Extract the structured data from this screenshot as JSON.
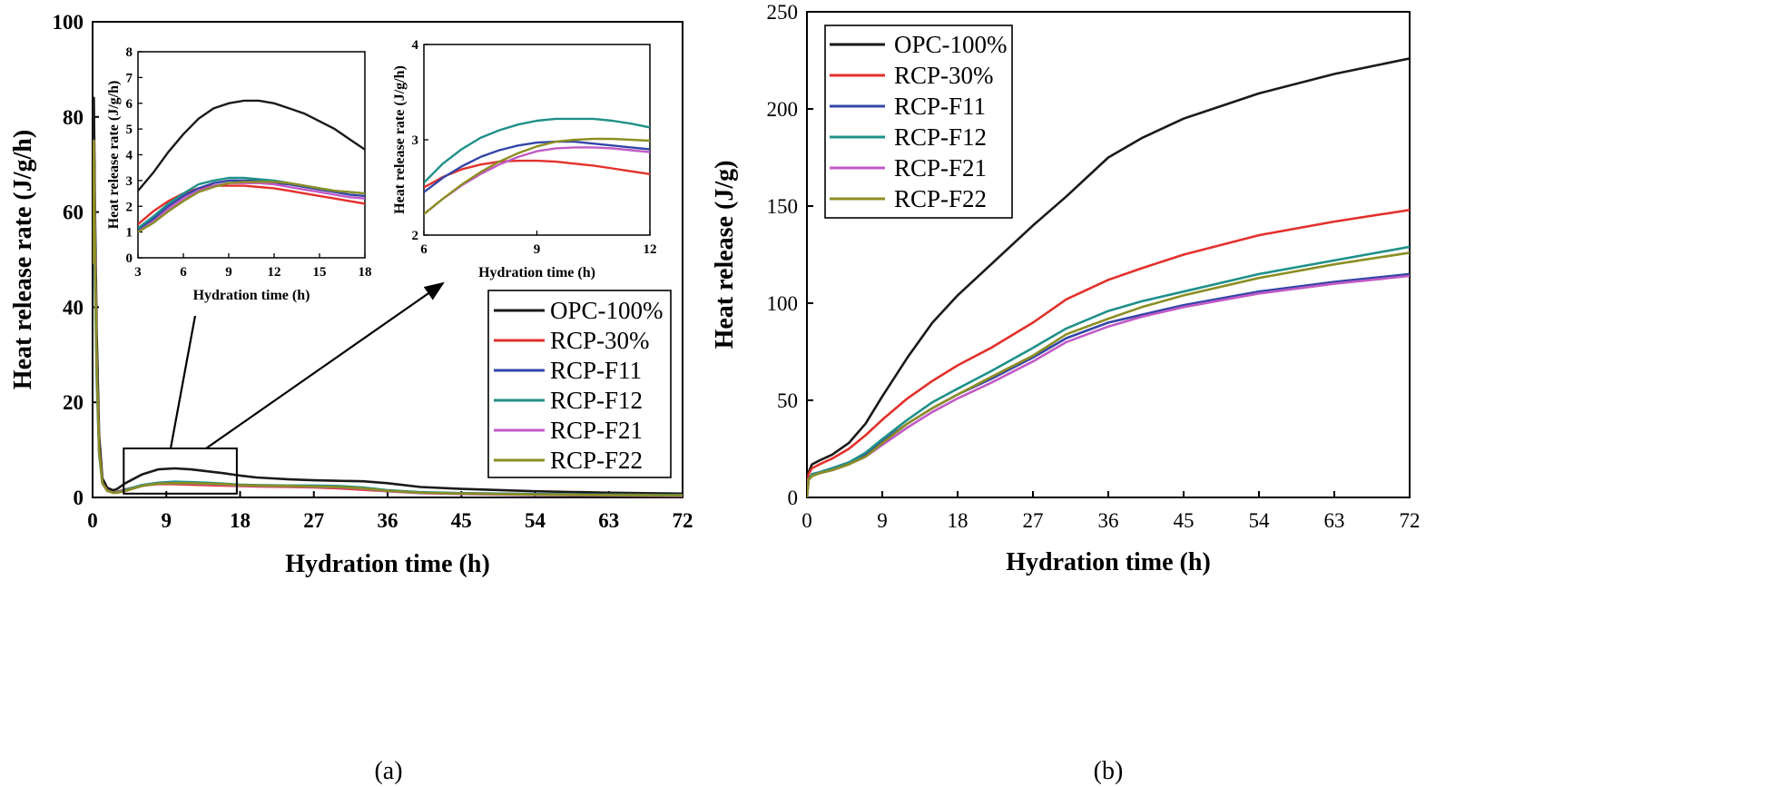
{
  "colors": {
    "OPC-100%": "#1a1a1a",
    "RCP-30%": "#e3302b",
    "RCP-F11": "#3346a8",
    "RCP-F12": "#1f9089",
    "RCP-F21": "#c25ac6",
    "RCP-F22": "#8c8e23"
  },
  "chart_data": [
    {
      "id": "a",
      "type": "line",
      "panel_label": "(a)",
      "xlabel": "Hydration time (h)",
      "ylabel": "Heat release rate (J/g/h)",
      "xlim": [
        0,
        72
      ],
      "ylim": [
        0,
        100
      ],
      "xticks": [
        0,
        9,
        18,
        27,
        36,
        45,
        54,
        63,
        72
      ],
      "yticks": [
        0,
        20,
        40,
        60,
        80,
        100
      ],
      "zoom_box": {
        "x": [
          3.8,
          17.6
        ],
        "y": [
          0.8,
          10.3
        ]
      },
      "legend": [
        "OPC-100%",
        "RCP-30%",
        "RCP-F11",
        "RCP-F12",
        "RCP-F21",
        "RCP-F22"
      ],
      "series": [
        {
          "name": "OPC-100%",
          "x": [
            0,
            0.15,
            0.3,
            0.5,
            0.8,
            1.2,
            1.8,
            2.5,
            3,
            4,
            6,
            8,
            10,
            12,
            14,
            16,
            18,
            20,
            24,
            27,
            30,
            33,
            36,
            40,
            45,
            54,
            63,
            72
          ],
          "y": [
            50,
            84,
            60,
            35,
            13,
            4,
            2,
            1.5,
            1.8,
            3,
            4.8,
            5.9,
            6.1,
            5.9,
            5.5,
            5.1,
            4.6,
            4.2,
            3.8,
            3.6,
            3.5,
            3.4,
            3,
            2.2,
            1.8,
            1.3,
            1.0,
            0.8
          ]
        },
        {
          "name": "RCP-30%",
          "x": [
            0,
            0.15,
            0.3,
            0.5,
            0.8,
            1.2,
            1.8,
            2.5,
            3,
            4,
            6,
            8,
            10,
            12,
            14,
            16,
            18,
            20,
            24,
            27,
            30,
            33,
            36,
            40,
            45,
            54,
            63,
            72
          ],
          "y": [
            49,
            75,
            52,
            28,
            10,
            3,
            1.4,
            1,
            1.2,
            1.7,
            2.5,
            2.8,
            2.8,
            2.7,
            2.6,
            2.5,
            2.4,
            2.3,
            2.2,
            2.1,
            1.9,
            1.6,
            1.3,
            1.0,
            0.9,
            0.7,
            0.6,
            0.5
          ]
        },
        {
          "name": "RCP-F11",
          "x": [
            0,
            0.15,
            0.3,
            0.5,
            0.8,
            1.2,
            1.8,
            2.5,
            3,
            4,
            6,
            8,
            10,
            12,
            14,
            16,
            18,
            20,
            24,
            27,
            30,
            33,
            36,
            40,
            45,
            54,
            63,
            72
          ],
          "y": [
            49,
            75,
            52,
            28,
            10,
            3,
            1.4,
            1,
            1.1,
            1.5,
            2.5,
            3,
            3.1,
            3,
            2.9,
            2.8,
            2.6,
            2.5,
            2.4,
            2.3,
            2.2,
            1.9,
            1.4,
            1.0,
            0.8,
            0.6,
            0.5,
            0.4
          ]
        },
        {
          "name": "RCP-F12",
          "x": [
            0,
            0.15,
            0.3,
            0.5,
            0.8,
            1.2,
            1.8,
            2.5,
            3,
            4,
            6,
            8,
            10,
            12,
            14,
            16,
            18,
            20,
            24,
            27,
            30,
            33,
            36,
            40,
            45,
            54,
            63,
            72
          ],
          "y": [
            49,
            62,
            45,
            25,
            9,
            3,
            1.4,
            1,
            1.1,
            1.6,
            2.6,
            3.1,
            3.3,
            3.2,
            3.1,
            2.9,
            2.7,
            2.6,
            2.5,
            2.5,
            2.4,
            2.1,
            1.5,
            1.1,
            0.9,
            0.7,
            0.6,
            0.5
          ]
        },
        {
          "name": "RCP-F21",
          "x": [
            0,
            0.15,
            0.3,
            0.5,
            0.8,
            1.2,
            1.8,
            2.5,
            3,
            4,
            6,
            8,
            10,
            12,
            14,
            16,
            18,
            20,
            24,
            27,
            30,
            33,
            36,
            40,
            45,
            54,
            63,
            72
          ],
          "y": [
            49,
            75,
            52,
            28,
            10,
            3,
            1.4,
            1,
            1.0,
            1.4,
            2.4,
            2.9,
            3.0,
            2.9,
            2.8,
            2.7,
            2.5,
            2.4,
            2.3,
            2.2,
            2.1,
            1.8,
            1.3,
            0.9,
            0.7,
            0.5,
            0.4,
            0.3
          ]
        },
        {
          "name": "RCP-F22",
          "x": [
            0,
            0.15,
            0.3,
            0.5,
            0.8,
            1.2,
            1.8,
            2.5,
            3,
            4,
            6,
            8,
            10,
            12,
            14,
            16,
            18,
            20,
            24,
            27,
            30,
            33,
            36,
            40,
            45,
            54,
            63,
            72
          ],
          "y": [
            49,
            75,
            52,
            28,
            10,
            3,
            1.4,
            1,
            1.0,
            1.4,
            2.4,
            2.9,
            3.0,
            3.0,
            2.9,
            2.8,
            2.6,
            2.5,
            2.4,
            2.3,
            2.2,
            1.9,
            1.4,
            1.0,
            0.8,
            0.6,
            0.5,
            0.4
          ]
        }
      ]
    },
    {
      "id": "a-inset-1",
      "type": "line",
      "xlabel": "Hydration time (h)",
      "ylabel": "Heat release rate (J/g/h)",
      "xlim": [
        3,
        18
      ],
      "ylim": [
        0,
        8
      ],
      "xticks": [
        3,
        6,
        9,
        12,
        15,
        18
      ],
      "yticks": [
        0,
        1,
        2,
        3,
        4,
        5,
        6,
        7,
        8
      ],
      "series": [
        {
          "name": "OPC-100%",
          "x": [
            3,
            4,
            5,
            6,
            7,
            8,
            9,
            10,
            11,
            12,
            13,
            14,
            15,
            16,
            17,
            18
          ],
          "y": [
            2.6,
            3.3,
            4.1,
            4.8,
            5.4,
            5.8,
            6.0,
            6.1,
            6.1,
            6.0,
            5.8,
            5.6,
            5.3,
            5.0,
            4.6,
            4.2
          ]
        },
        {
          "name": "RCP-30%",
          "x": [
            3,
            4,
            5,
            6,
            7,
            8,
            9,
            10,
            11,
            12,
            13,
            14,
            15,
            16,
            17,
            18
          ],
          "y": [
            1.3,
            1.8,
            2.2,
            2.5,
            2.7,
            2.8,
            2.8,
            2.8,
            2.75,
            2.7,
            2.6,
            2.5,
            2.4,
            2.3,
            2.2,
            2.1
          ]
        },
        {
          "name": "RCP-F11",
          "x": [
            3,
            4,
            5,
            6,
            7,
            8,
            9,
            10,
            11,
            12,
            13,
            14,
            15,
            16,
            17,
            18
          ],
          "y": [
            1.1,
            1.5,
            2.0,
            2.4,
            2.7,
            2.9,
            3.0,
            3.0,
            3.0,
            2.9,
            2.85,
            2.75,
            2.65,
            2.55,
            2.45,
            2.4
          ]
        },
        {
          "name": "RCP-F12",
          "x": [
            3,
            4,
            5,
            6,
            7,
            8,
            9,
            10,
            11,
            12,
            13,
            14,
            15,
            16,
            17,
            18
          ],
          "y": [
            1.15,
            1.6,
            2.1,
            2.5,
            2.85,
            3.0,
            3.1,
            3.1,
            3.05,
            3.0,
            2.9,
            2.8,
            2.7,
            2.6,
            2.55,
            2.5
          ]
        },
        {
          "name": "RCP-F21",
          "x": [
            3,
            4,
            5,
            6,
            7,
            8,
            9,
            10,
            11,
            12,
            13,
            14,
            15,
            16,
            17,
            18
          ],
          "y": [
            1.0,
            1.4,
            1.9,
            2.3,
            2.6,
            2.8,
            2.9,
            2.9,
            2.9,
            2.85,
            2.75,
            2.65,
            2.55,
            2.45,
            2.35,
            2.3
          ]
        },
        {
          "name": "RCP-F22",
          "x": [
            3,
            4,
            5,
            6,
            7,
            8,
            9,
            10,
            11,
            12,
            13,
            14,
            15,
            16,
            17,
            18
          ],
          "y": [
            1.0,
            1.35,
            1.8,
            2.2,
            2.55,
            2.75,
            2.9,
            2.95,
            2.95,
            2.95,
            2.9,
            2.8,
            2.7,
            2.6,
            2.55,
            2.5
          ]
        }
      ]
    },
    {
      "id": "a-inset-2",
      "type": "line",
      "xlabel": "Hydration time (h)",
      "ylabel": "Heat release rate (J/g/h)",
      "xlim": [
        6,
        12
      ],
      "ylim": [
        2,
        4
      ],
      "xticks": [
        6,
        9,
        12
      ],
      "yticks": [
        2,
        3,
        4
      ],
      "series": [
        {
          "name": "RCP-30%",
          "x": [
            6,
            6.5,
            7,
            7.5,
            8,
            8.5,
            9,
            9.5,
            10,
            10.5,
            11,
            11.5,
            12
          ],
          "y": [
            2.5,
            2.61,
            2.69,
            2.74,
            2.77,
            2.78,
            2.78,
            2.77,
            2.75,
            2.73,
            2.7,
            2.67,
            2.64
          ]
        },
        {
          "name": "RCP-F11",
          "x": [
            6,
            6.5,
            7,
            7.5,
            8,
            8.5,
            9,
            9.5,
            10,
            10.5,
            11,
            11.5,
            12
          ],
          "y": [
            2.45,
            2.6,
            2.72,
            2.82,
            2.89,
            2.94,
            2.97,
            2.98,
            2.98,
            2.96,
            2.94,
            2.92,
            2.9
          ]
        },
        {
          "name": "RCP-F12",
          "x": [
            6,
            6.5,
            7,
            7.5,
            8,
            8.5,
            9,
            9.5,
            10,
            10.5,
            11,
            11.5,
            12
          ],
          "y": [
            2.55,
            2.75,
            2.9,
            3.02,
            3.1,
            3.16,
            3.2,
            3.22,
            3.22,
            3.22,
            3.2,
            3.17,
            3.13
          ]
        },
        {
          "name": "RCP-F21",
          "x": [
            6,
            6.5,
            7,
            7.5,
            8,
            8.5,
            9,
            9.5,
            10,
            10.5,
            11,
            11.5,
            12
          ],
          "y": [
            2.22,
            2.38,
            2.52,
            2.64,
            2.74,
            2.82,
            2.88,
            2.91,
            2.92,
            2.92,
            2.91,
            2.89,
            2.87
          ]
        },
        {
          "name": "RCP-F22",
          "x": [
            6,
            6.5,
            7,
            7.5,
            8,
            8.5,
            9,
            9.5,
            10,
            10.5,
            11,
            11.5,
            12
          ],
          "y": [
            2.22,
            2.38,
            2.53,
            2.66,
            2.77,
            2.86,
            2.93,
            2.98,
            3.0,
            3.01,
            3.01,
            3.0,
            2.99
          ]
        }
      ]
    },
    {
      "id": "b",
      "type": "line",
      "panel_label": "(b)",
      "xlabel": "Hydration time (h)",
      "ylabel": "Heat release (J/g)",
      "xlim": [
        0,
        72
      ],
      "ylim": [
        0,
        250
      ],
      "xticks": [
        0,
        9,
        18,
        27,
        36,
        45,
        54,
        63,
        72
      ],
      "yticks": [
        0,
        50,
        100,
        150,
        200,
        250
      ],
      "legend": [
        "OPC-100%",
        "RCP-30%",
        "RCP-F11",
        "RCP-F12",
        "RCP-F21",
        "RCP-F22"
      ],
      "series": [
        {
          "name": "OPC-100%",
          "x": [
            0,
            0.2,
            0.6,
            1.5,
            3,
            5,
            7,
            9,
            12,
            15,
            18,
            22,
            27,
            31,
            36,
            40,
            45,
            54,
            63,
            72
          ],
          "y": [
            0,
            13,
            17,
            19,
            22,
            28,
            38,
            52,
            72,
            90,
            104,
            120,
            140,
            155,
            175,
            185,
            195,
            208,
            218,
            226
          ]
        },
        {
          "name": "RCP-30%",
          "x": [
            0,
            0.2,
            0.6,
            1.5,
            3,
            5,
            7,
            9,
            12,
            15,
            18,
            22,
            27,
            31,
            36,
            40,
            45,
            54,
            63,
            72
          ],
          "y": [
            0,
            12,
            15,
            17,
            20,
            25,
            32,
            40,
            51,
            60,
            68,
            77,
            90,
            102,
            112,
            118,
            125,
            135,
            142,
            148
          ]
        },
        {
          "name": "RCP-F11",
          "x": [
            0,
            0.2,
            0.6,
            1.5,
            3,
            5,
            7,
            9,
            12,
            15,
            18,
            22,
            27,
            31,
            36,
            40,
            45,
            54,
            63,
            72
          ],
          "y": [
            0,
            9,
            11,
            13,
            15,
            18,
            22,
            29,
            38,
            46,
            53,
            61,
            72,
            82,
            90,
            94,
            99,
            106,
            111,
            115
          ]
        },
        {
          "name": "RCP-F12",
          "x": [
            0,
            0.2,
            0.6,
            1.5,
            3,
            5,
            7,
            9,
            12,
            15,
            18,
            22,
            27,
            31,
            36,
            40,
            45,
            54,
            63,
            72
          ],
          "y": [
            0,
            9,
            12,
            13,
            15,
            18,
            23,
            30,
            40,
            49,
            56,
            65,
            77,
            87,
            96,
            101,
            106,
            115,
            122,
            129
          ]
        },
        {
          "name": "RCP-F21",
          "x": [
            0,
            0.2,
            0.6,
            1.5,
            3,
            5,
            7,
            9,
            12,
            15,
            18,
            22,
            27,
            31,
            36,
            40,
            45,
            54,
            63,
            72
          ],
          "y": [
            0,
            9,
            11,
            12.5,
            14,
            17,
            21,
            27,
            36,
            44,
            51,
            59,
            70,
            80,
            88,
            93,
            98,
            105,
            110,
            114
          ]
        },
        {
          "name": "RCP-F22",
          "x": [
            0,
            0.2,
            0.6,
            1.5,
            3,
            5,
            7,
            9,
            12,
            15,
            18,
            22,
            27,
            31,
            36,
            40,
            45,
            54,
            63,
            72
          ],
          "y": [
            0,
            9,
            11,
            12.5,
            14,
            17,
            21,
            28,
            38,
            46,
            53,
            62,
            73,
            84,
            92,
            98,
            104,
            113,
            120,
            126
          ]
        }
      ]
    }
  ]
}
